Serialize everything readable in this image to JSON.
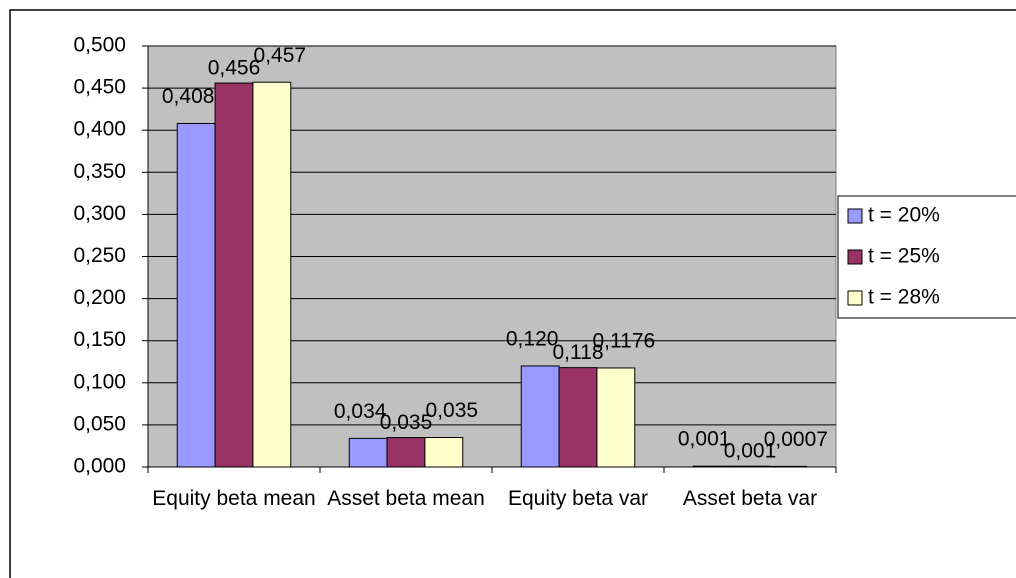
{
  "chart_data": {
    "type": "bar",
    "categories": [
      "Equity beta mean",
      "Asset beta mean",
      "Equity beta var",
      "Asset beta var"
    ],
    "series": [
      {
        "name": "t = 20%",
        "color": "#9999ff",
        "values": [
          0.408,
          0.034,
          0.12,
          0.001
        ],
        "value_labels": [
          "0,408",
          "0,034",
          "0,120",
          "0,001"
        ]
      },
      {
        "name": "t = 25%",
        "color": "#993366",
        "values": [
          0.456,
          0.035,
          0.118,
          0.001
        ],
        "value_labels": [
          "0,456",
          "0,035",
          "0,118",
          "0,001"
        ]
      },
      {
        "name": "t = 28%",
        "color": "#ffffcc",
        "values": [
          0.457,
          0.035,
          0.1176,
          0.0007
        ],
        "value_labels": [
          "0,457",
          "0,035",
          "0,1176",
          "0,0007"
        ]
      }
    ],
    "ylim": [
      0,
      0.5
    ],
    "yticks": [
      {
        "value": 0,
        "label": "0,000"
      },
      {
        "value": 0.05,
        "label": "0,050"
      },
      {
        "value": 0.1,
        "label": "0,100"
      },
      {
        "value": 0.15,
        "label": "0,150"
      },
      {
        "value": 0.2,
        "label": "0,200"
      },
      {
        "value": 0.25,
        "label": "0,250"
      },
      {
        "value": 0.3,
        "label": "0,300"
      },
      {
        "value": 0.35,
        "label": "0,350"
      },
      {
        "value": 0.4,
        "label": "0,400"
      },
      {
        "value": 0.45,
        "label": "0,450"
      },
      {
        "value": 0.5,
        "label": "0,500"
      }
    ],
    "grid": true,
    "plot_background": "#c0c0c0",
    "legend": "right"
  }
}
